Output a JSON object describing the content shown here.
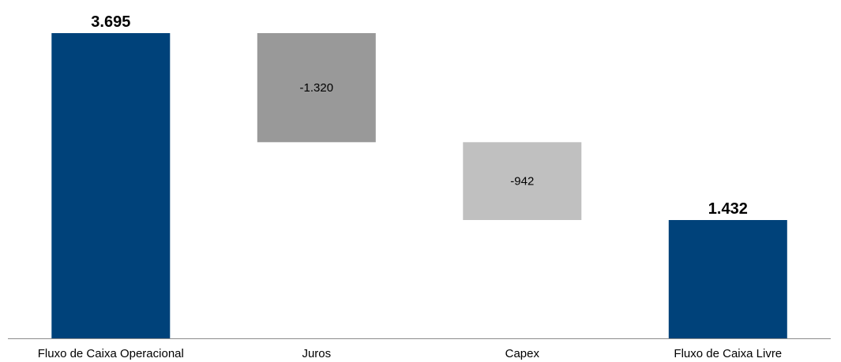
{
  "chart_data": {
    "type": "bar",
    "subtype": "waterfall",
    "categories": [
      "Fluxo de Caixa Operacional",
      "Juros",
      "Capex",
      "Fluxo de Caixa Livre"
    ],
    "values": [
      3695,
      -1320,
      -942,
      1432
    ],
    "value_labels": [
      "3.695",
      "-1.320",
      "-942",
      "1.432"
    ],
    "bar_kinds": [
      "total",
      "delta",
      "delta",
      "total"
    ],
    "colors": {
      "total": "#00427a",
      "juros": "#999999",
      "capex": "#c0c0c0",
      "axis": "#8c8c8c"
    },
    "ylim": [
      0,
      3695
    ],
    "grid": false,
    "legend": "none"
  }
}
